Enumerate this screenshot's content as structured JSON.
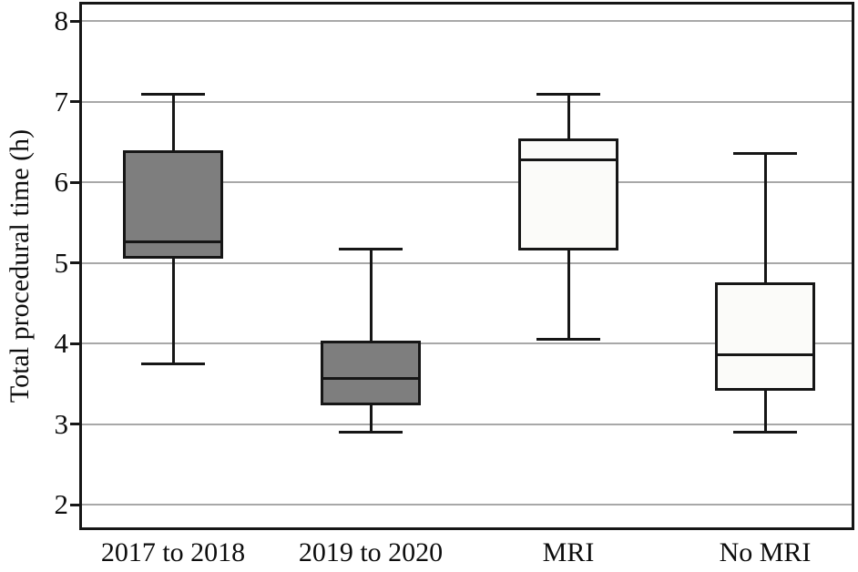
{
  "figure": {
    "background": "#ffffff"
  },
  "chart_data": {
    "type": "boxplot",
    "title": "",
    "xlabel": "",
    "ylabel": "Total procedural time (h)",
    "ylim": [
      1.71,
      8.22
    ],
    "yticks": [
      2,
      3,
      4,
      5,
      6,
      7,
      8
    ],
    "grid": "horizontal",
    "legend": "none",
    "categories": [
      "2017 to 2018",
      "2019 to 2020",
      "MRI",
      "No MRI"
    ],
    "series": [
      {
        "name": "2017 to 2018",
        "whisker_low": 3.75,
        "q1": 5.07,
        "median": 5.27,
        "q3": 6.38,
        "whisker_high": 7.1,
        "fill": "#7e7e7e"
      },
      {
        "name": "2019 to 2020",
        "whisker_low": 2.9,
        "q1": 3.25,
        "median": 3.57,
        "q3": 4.02,
        "whisker_high": 5.17,
        "fill": "#7e7e7e"
      },
      {
        "name": "MRI",
        "whisker_low": 4.05,
        "q1": 5.17,
        "median": 6.28,
        "q3": 6.53,
        "whisker_high": 7.1,
        "fill": "#fbfbf9"
      },
      {
        "name": "No MRI",
        "whisker_low": 2.9,
        "q1": 3.43,
        "median": 3.86,
        "q3": 4.75,
        "whisker_high": 6.36,
        "fill": "#fbfbf9"
      }
    ],
    "colors": {
      "stroke": "#161616",
      "gridline": "#a8a8a8",
      "gray_box_fill": "#7e7e7e",
      "light_box_fill": "#fbfbf9",
      "text": "#0d0d0d"
    }
  }
}
